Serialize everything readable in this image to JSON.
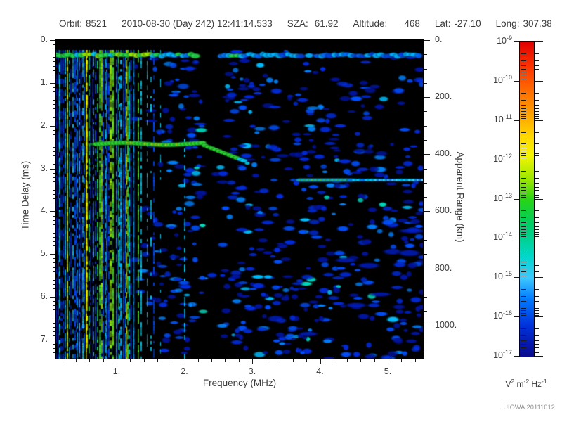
{
  "header": {
    "orbit_label": "Orbit:",
    "orbit_value": "8521",
    "datetime": "2010-08-30 (Day 242) 12:41:14.533",
    "sza_label": "SZA:",
    "sza_value": "61.92",
    "altitude_label": "Altitude:",
    "altitude_value": "468",
    "lat_label": "Lat:",
    "lat_value": "-27.10",
    "long_label": "Long:",
    "long_value": "307.38"
  },
  "footer": {
    "credit": "UIOWA 20111012"
  },
  "chart_data": {
    "type": "heatmap",
    "description": "Radar sounder ionogram: received spectral density vs sounding frequency and echo time delay",
    "xlabel": "Frequency (MHz)",
    "ylabel_left": "Time Delay (ms)",
    "ylabel_right": "Apparent Range (km)",
    "x_axis": {
      "range_mhz": [
        0.11,
        5.52
      ],
      "major_ticks": [
        1,
        2,
        3,
        4,
        5
      ],
      "major_tick_labels": [
        "1.",
        "2.",
        "3.",
        "4.",
        "5."
      ],
      "minor_tick_step_mhz": 0.2
    },
    "y_axis": {
      "range_ms": [
        0,
        7.44
      ],
      "major_ticks": [
        0,
        1,
        2,
        3,
        4,
        5,
        6,
        7
      ],
      "major_tick_labels": [
        "0.",
        "1.",
        "2.",
        "3.",
        "4.",
        "5.",
        "6.",
        "7."
      ],
      "minor_tick_step_ms": 0.1
    },
    "right_axis": {
      "range_km": [
        0,
        1116
      ],
      "km_per_ms": 150,
      "major_ticks": [
        0,
        200,
        400,
        600,
        800,
        1000
      ],
      "major_tick_labels": [
        "0.",
        "200.",
        "400.",
        "600.",
        "800.",
        "1000."
      ],
      "minor_tick_step_km": 50
    },
    "colorbar": {
      "scale": "log",
      "tick_exponents": [
        "-9",
        "-10",
        "-11",
        "-12",
        "-13",
        "-14",
        "-15",
        "-16",
        "-17"
      ],
      "unit_parts": [
        [
          "V",
          "2"
        ],
        [
          "m",
          "-2"
        ],
        [
          "Hz",
          "-1"
        ]
      ],
      "gradient_stops": [
        {
          "pos": 0.0,
          "color": "#e10000"
        },
        {
          "pos": 0.09,
          "color": "#ff3c00"
        },
        {
          "pos": 0.2,
          "color": "#ff8c00"
        },
        {
          "pos": 0.3,
          "color": "#ffd700"
        },
        {
          "pos": 0.36,
          "color": "#f5f500"
        },
        {
          "pos": 0.44,
          "color": "#96e600"
        },
        {
          "pos": 0.5,
          "color": "#28d414"
        },
        {
          "pos": 0.58,
          "color": "#00cd66"
        },
        {
          "pos": 0.68,
          "color": "#00d7c8"
        },
        {
          "pos": 0.75,
          "color": "#3cc8ff"
        },
        {
          "pos": 0.82,
          "color": "#0078ff"
        },
        {
          "pos": 0.9,
          "color": "#0032dc"
        },
        {
          "pos": 1.0,
          "color": "#0a0a8c"
        }
      ]
    },
    "features": [
      {
        "name": "transmitter pulse band",
        "time_delay_ms": 0.35,
        "freq_range_mhz": [
          0.11,
          5.52
        ],
        "approx_level": "1e-12 to 1e-14"
      },
      {
        "name": "electron plasma oscillation harmonics (vertical stripes)",
        "freq_range_mhz": [
          0.11,
          1.3
        ],
        "time_delay_range_ms": [
          0.25,
          7.44
        ],
        "approx_level": "1e-12 to 1e-15"
      },
      {
        "name": "ionospheric echo trace",
        "freq_range_mhz": [
          0.75,
          2.9
        ],
        "time_delay_ms_start": 2.43,
        "time_delay_ms_end": 2.82,
        "approx_level": "1e-12"
      },
      {
        "name": "surface reflection",
        "freq_range_mhz": [
          3.5,
          5.52
        ],
        "time_delay_ms": 3.27,
        "apparent_range_km": 490,
        "approx_level": "1e-13"
      },
      {
        "name": "background noise speckle",
        "approx_level": "1e-16 to 1e-15"
      }
    ],
    "render": {
      "seed": 20111012,
      "speckle_palette": [
        {
          "c": "#0014a0",
          "w": 0.38
        },
        {
          "c": "#002ce0",
          "w": 0.27
        },
        {
          "c": "#0050ff",
          "w": 0.18
        },
        {
          "c": "#0082ff",
          "w": 0.1
        },
        {
          "c": "#00c0ff",
          "w": 0.05
        },
        {
          "c": "#00e6c8",
          "w": 0.02
        }
      ],
      "stripe_palette": [
        {
          "c": "#0020b4",
          "w": 0.22
        },
        {
          "c": "#0048ff",
          "w": 0.2
        },
        {
          "c": "#00b4ff",
          "w": 0.2
        },
        {
          "c": "#00e0e0",
          "w": 0.1
        },
        {
          "c": "#28dc3c",
          "w": 0.15
        },
        {
          "c": "#96e600",
          "w": 0.08
        },
        {
          "c": "#e6ea00",
          "w": 0.05
        }
      ]
    }
  },
  "colors": {
    "text": "#3d3d3d",
    "footer_text": "#8a8a8a",
    "plot_bg": "#000000"
  }
}
